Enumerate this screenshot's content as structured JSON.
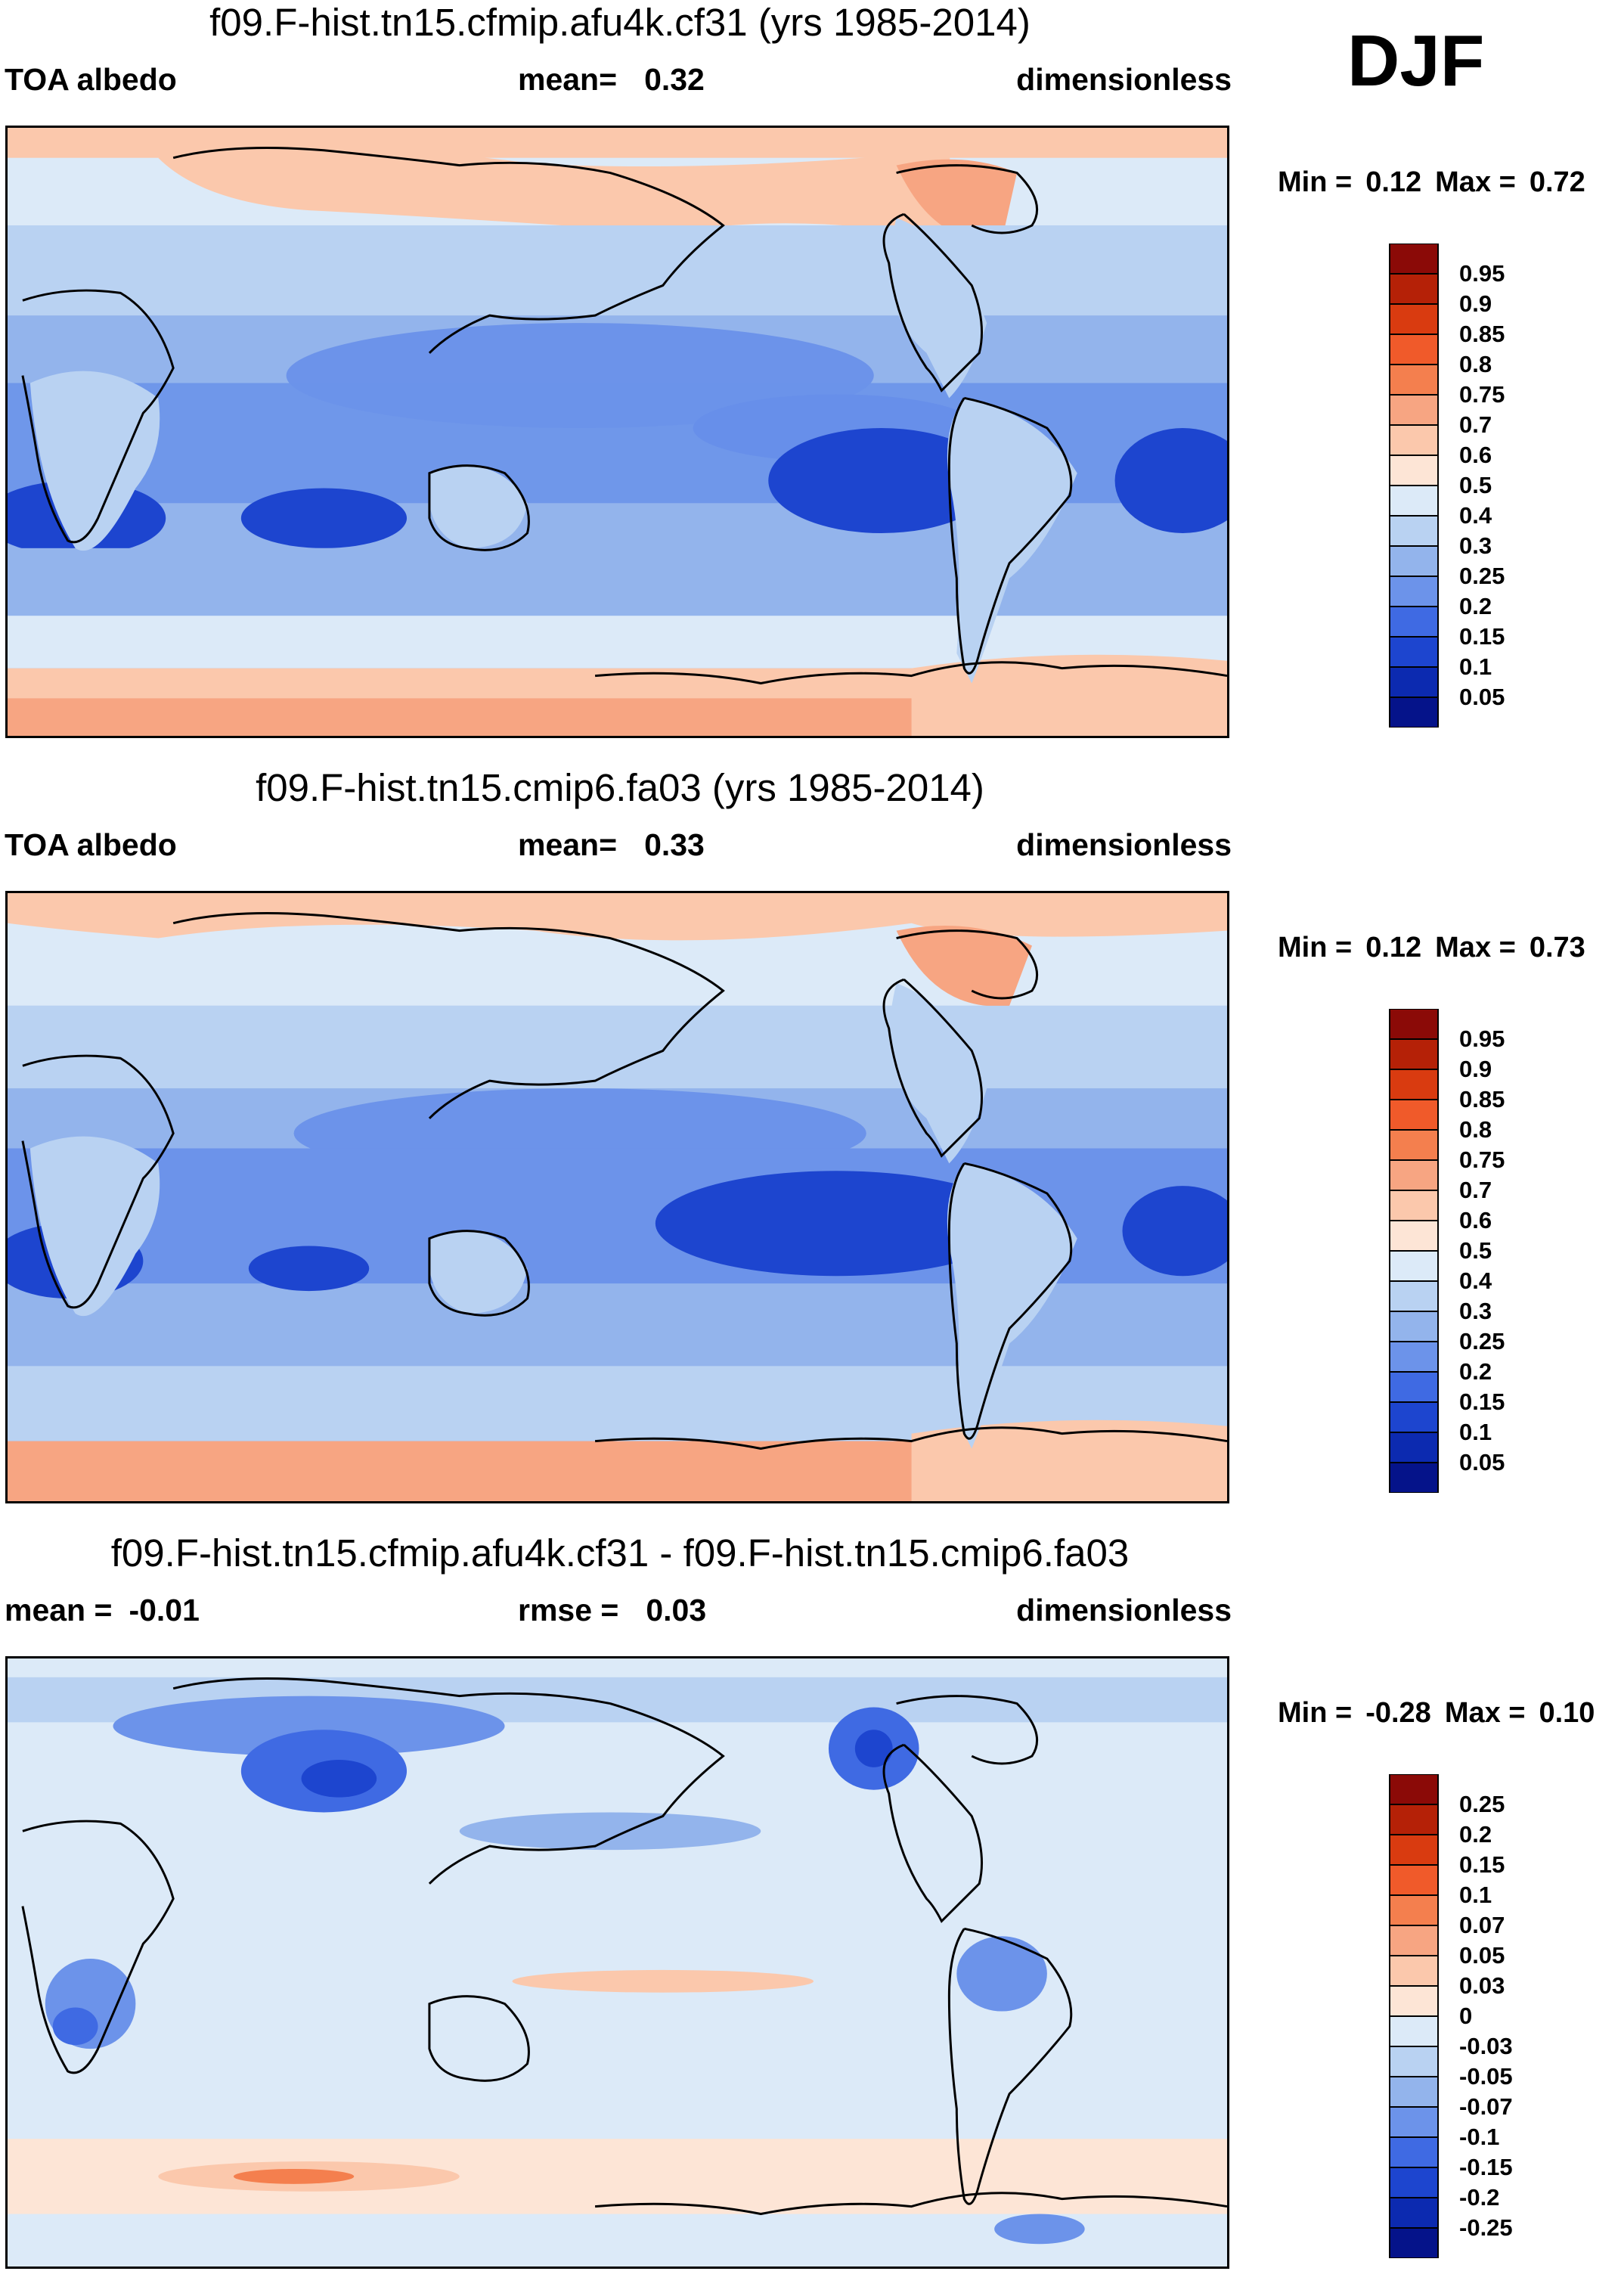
{
  "season": "DJF",
  "panels": [
    {
      "title": "f09.F-hist.tn15.cfmip.afu4k.cf31 (yrs 1985-2014)",
      "left_label": "TOA albedo",
      "mid_label": "mean=",
      "mid_value": "0.32",
      "right_label": "dimensionless",
      "min_label": "Min =",
      "min_value": "0.12",
      "max_label": "Max =",
      "max_value": "0.72",
      "colorbar_labels": [
        "0.95",
        "0.9",
        "0.85",
        "0.8",
        "0.75",
        "0.7",
        "0.6",
        "0.5",
        "0.4",
        "0.3",
        "0.25",
        "0.2",
        "0.15",
        "0.1",
        "0.05"
      ]
    },
    {
      "title": "f09.F-hist.tn15.cmip6.fa03 (yrs 1985-2014)",
      "left_label": "TOA albedo",
      "mid_label": "mean=",
      "mid_value": "0.33",
      "right_label": "dimensionless",
      "min_label": "Min =",
      "min_value": "0.12",
      "max_label": "Max =",
      "max_value": "0.73",
      "colorbar_labels": [
        "0.95",
        "0.9",
        "0.85",
        "0.8",
        "0.75",
        "0.7",
        "0.6",
        "0.5",
        "0.4",
        "0.3",
        "0.25",
        "0.2",
        "0.15",
        "0.1",
        "0.05"
      ]
    },
    {
      "title": "f09.F-hist.tn15.cfmip.afu4k.cf31 - f09.F-hist.tn15.cmip6.fa03",
      "left_label": "mean =",
      "left_value": "-0.01",
      "mid_label": "rmse =",
      "mid_value": "0.03",
      "right_label": "dimensionless",
      "min_label": "Min =",
      "min_value": "-0.28",
      "max_label": "Max =",
      "max_value": "0.10",
      "colorbar_labels": [
        "0.25",
        "0.2",
        "0.15",
        "0.1",
        "0.07",
        "0.05",
        "0.03",
        "0",
        "-0.03",
        "-0.05",
        "-0.07",
        "-0.1",
        "-0.15",
        "-0.2",
        "-0.25"
      ]
    }
  ],
  "colors": {
    "abs_scale": [
      "#8b0a07",
      "#b52107",
      "#d93b10",
      "#f05a2a",
      "#f47f4e",
      "#f7a582",
      "#fbc8ac",
      "#fde5d6",
      "#dceaf8",
      "#b9d2f2",
      "#93b4ec",
      "#6c93ea",
      "#3f6ae3",
      "#1d45cf",
      "#0c2ab0",
      "#05138a"
    ],
    "diff_scale": [
      "#8b0a07",
      "#b52107",
      "#d93b10",
      "#f05a2a",
      "#f47f4e",
      "#f7a582",
      "#fbc8ac",
      "#fde5d6",
      "#dceaf8",
      "#b9d2f2",
      "#93b4ec",
      "#6c93ea",
      "#3f6ae3",
      "#1d45cf",
      "#0c2ab0",
      "#05138a"
    ],
    "coastline": "#000000"
  }
}
